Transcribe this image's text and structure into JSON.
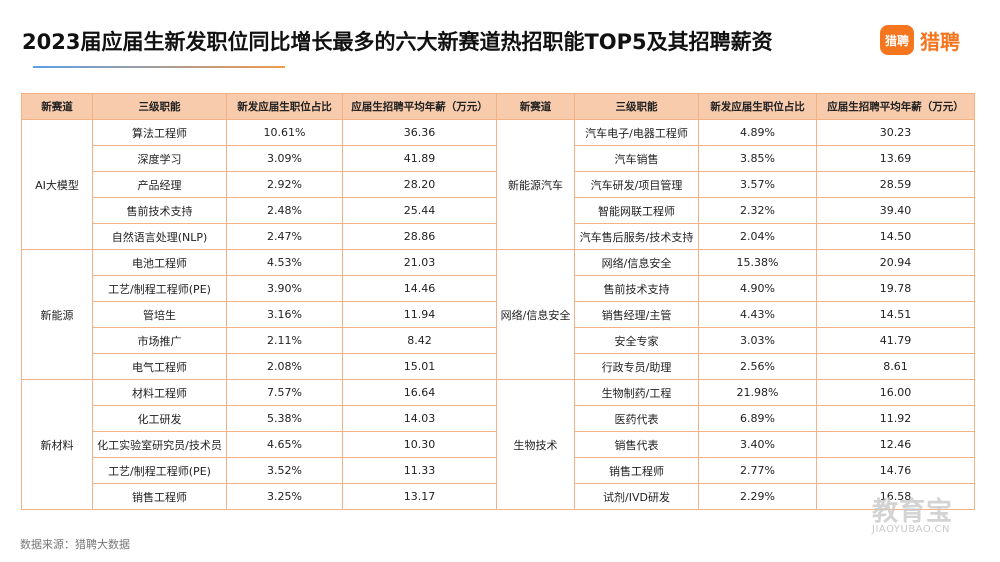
{
  "header": {
    "title": "2023届应届生新发职位同比增长最多的六大新赛道热招职能TOP5及其招聘薪资",
    "logo_icon_text": "猎聘",
    "logo_text": "猎聘"
  },
  "table": {
    "columns": [
      "新赛道",
      "三级职能",
      "新发应届生职位占比",
      "应届生招聘平均年薪（万元）",
      "新赛道",
      "三级职能",
      "新发应届生职位占比",
      "应届生招聘平均年薪（万元）"
    ],
    "left_groups": [
      {
        "name": "AI大模型",
        "rows": [
          [
            "算法工程师",
            "10.61%",
            "36.36"
          ],
          [
            "深度学习",
            "3.09%",
            "41.89"
          ],
          [
            "产品经理",
            "2.92%",
            "28.20"
          ],
          [
            "售前技术支持",
            "2.48%",
            "25.44"
          ],
          [
            "自然语言处理(NLP)",
            "2.47%",
            "28.86"
          ]
        ]
      },
      {
        "name": "新能源",
        "rows": [
          [
            "电池工程师",
            "4.53%",
            "21.03"
          ],
          [
            "工艺/制程工程师(PE)",
            "3.90%",
            "14.46"
          ],
          [
            "管培生",
            "3.16%",
            "11.94"
          ],
          [
            "市场推广",
            "2.11%",
            "8.42"
          ],
          [
            "电气工程师",
            "2.08%",
            "15.01"
          ]
        ]
      },
      {
        "name": "新材料",
        "rows": [
          [
            "材料工程师",
            "7.57%",
            "16.64"
          ],
          [
            "化工研发",
            "5.38%",
            "14.03"
          ],
          [
            "化工实验室研究员/技术员",
            "4.65%",
            "10.30"
          ],
          [
            "工艺/制程工程师(PE)",
            "3.52%",
            "11.33"
          ],
          [
            "销售工程师",
            "3.25%",
            "13.17"
          ]
        ]
      }
    ],
    "right_groups": [
      {
        "name": "新能源汽车",
        "rows": [
          [
            "汽车电子/电器工程师",
            "4.89%",
            "30.23"
          ],
          [
            "汽车销售",
            "3.85%",
            "13.69"
          ],
          [
            "汽车研发/项目管理",
            "3.57%",
            "28.59"
          ],
          [
            "智能网联工程师",
            "2.32%",
            "39.40"
          ],
          [
            "汽车售后服务/技术支持",
            "2.04%",
            "14.50"
          ]
        ]
      },
      {
        "name": "网络/信息安全",
        "rows": [
          [
            "网络/信息安全",
            "15.38%",
            "20.94"
          ],
          [
            "售前技术支持",
            "4.90%",
            "19.78"
          ],
          [
            "销售经理/主管",
            "4.43%",
            "14.51"
          ],
          [
            "安全专家",
            "3.03%",
            "41.79"
          ],
          [
            "行政专员/助理",
            "2.56%",
            "8.61"
          ]
        ]
      },
      {
        "name": "生物技术",
        "rows": [
          [
            "生物制药/工程",
            "21.98%",
            "16.00"
          ],
          [
            "医药代表",
            "6.89%",
            "11.92"
          ],
          [
            "销售代表",
            "3.40%",
            "12.46"
          ],
          [
            "销售工程师",
            "2.77%",
            "14.76"
          ],
          [
            "试剂/IVD研发",
            "2.29%",
            "16.58"
          ]
        ]
      }
    ]
  },
  "footer": {
    "source": "数据来源：猎聘大数据"
  },
  "watermark": {
    "main": "教育宝",
    "sub": "JIAOYUBAO.CN"
  },
  "colors": {
    "header_bg": "#f8cbad",
    "border": "#f4b183",
    "brand": "#f5761f"
  }
}
